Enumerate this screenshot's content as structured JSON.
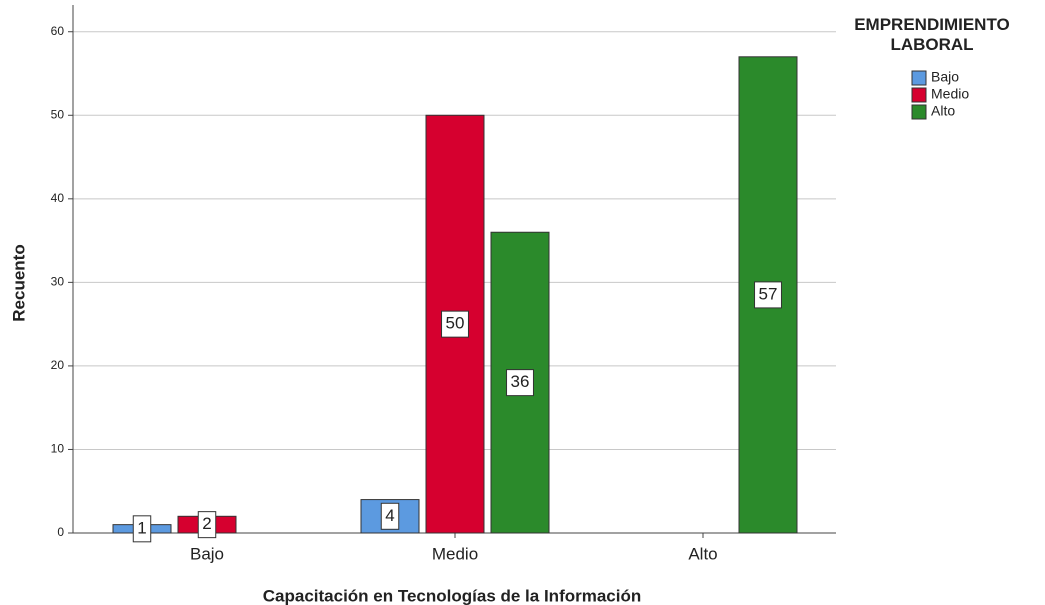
{
  "chart_data": {
    "type": "bar",
    "x_label": "Capacitación en Tecnologías de la Información",
    "y_label": "Recuento",
    "legend_title": "EMPRENDIMIENTO LABORAL",
    "legend": "right",
    "grid": true,
    "categories": [
      "Bajo",
      "Medio",
      "Alto"
    ],
    "series": [
      {
        "name": "Bajo",
        "color": "#5c9ae0",
        "values": [
          1,
          4,
          null
        ]
      },
      {
        "name": "Medio",
        "color": "#d6002f",
        "values": [
          2,
          50,
          null
        ]
      },
      {
        "name": "Alto",
        "color": "#2b8a2b",
        "values": [
          null,
          36,
          57
        ]
      }
    ],
    "ylim": [
      0,
      63.2
    ],
    "yticks": [
      0,
      10,
      20,
      30,
      40,
      50,
      60
    ]
  }
}
